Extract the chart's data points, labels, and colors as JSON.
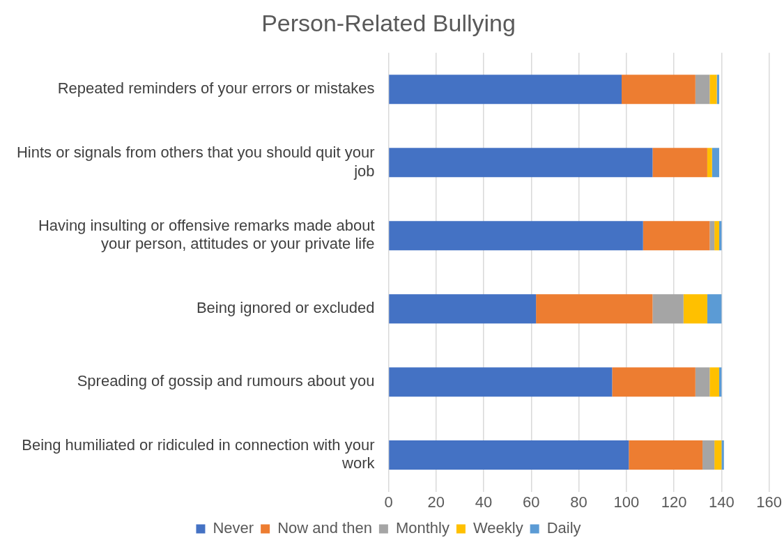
{
  "chart_data": {
    "type": "bar",
    "title": "Person-Related Bullying",
    "orientation": "horizontal",
    "stacked": true,
    "categories": [
      "Repeated reminders of your errors or mistakes",
      "Hints or signals from others that you should quit your job",
      "Having insulting or offensive remarks made about your person, attitudes or your private life",
      "Being ignored or excluded",
      "Spreading of gossip and rumours about you",
      "Being humiliated or ridiculed in connection with your work"
    ],
    "series": [
      {
        "name": "Never",
        "color": "#4472c4",
        "values": [
          98,
          111,
          107,
          62,
          94,
          101
        ]
      },
      {
        "name": "Now and then",
        "color": "#ed7d31",
        "values": [
          31,
          23,
          28,
          49,
          35,
          31
        ]
      },
      {
        "name": "Monthly",
        "color": "#a5a5a5",
        "values": [
          6,
          0,
          2,
          13,
          6,
          5
        ]
      },
      {
        "name": "Weekly",
        "color": "#ffc000",
        "values": [
          3,
          2,
          2,
          10,
          4,
          3
        ]
      },
      {
        "name": "Daily",
        "color": "#5b9bd5",
        "values": [
          1,
          3,
          1,
          6,
          1,
          1
        ]
      }
    ],
    "xlim": [
      0,
      160
    ],
    "xticks": [
      0,
      20,
      40,
      60,
      80,
      100,
      120,
      140,
      160
    ],
    "grid": "x",
    "legend": "bottom"
  }
}
